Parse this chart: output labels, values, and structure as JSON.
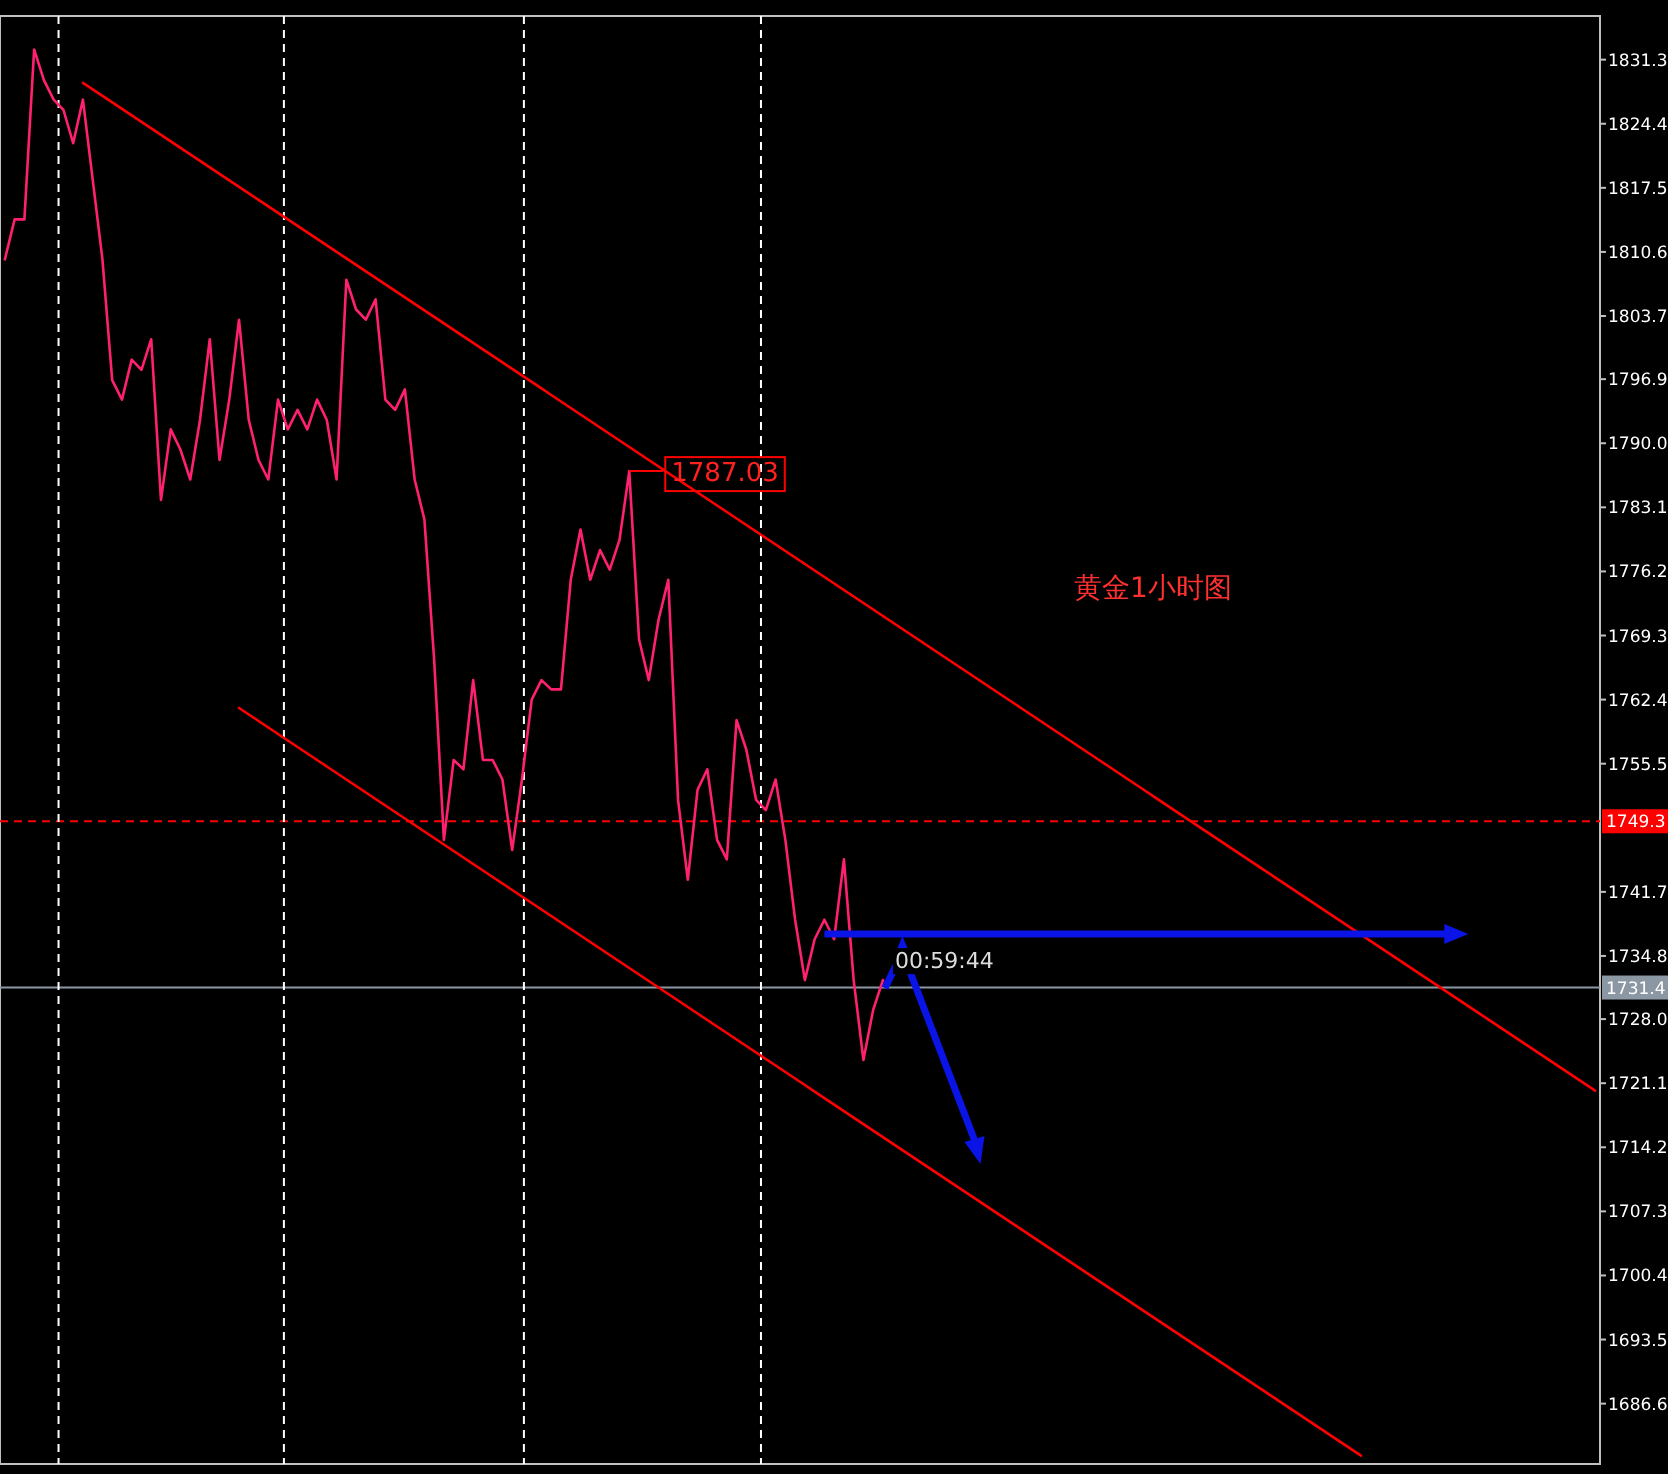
{
  "chart_data": {
    "type": "line",
    "categories": [
      null,
      null,
      null,
      null,
      null,
      null,
      null,
      null,
      null,
      null,
      null,
      null,
      null,
      null,
      null,
      null,
      null,
      null,
      null,
      null,
      null,
      null,
      null,
      null,
      null,
      null,
      null,
      null,
      null,
      null,
      null,
      null,
      null,
      null,
      null,
      null,
      null,
      null,
      null,
      null,
      null,
      null,
      null,
      null,
      null,
      null,
      null,
      null,
      null,
      null,
      null,
      null,
      null,
      null,
      null,
      null,
      null,
      null,
      null,
      null,
      null,
      null,
      null,
      null,
      null,
      null,
      null,
      null,
      null,
      null,
      null,
      null,
      null,
      null,
      null,
      null,
      null,
      null,
      null,
      null,
      null,
      null,
      null,
      null,
      null,
      null,
      null,
      null,
      null,
      null,
      null,
      null,
      null,
      null,
      null,
      null,
      null,
      null,
      null,
      null,
      null,
      null,
      null,
      null,
      null,
      null,
      null,
      null,
      null,
      null,
      null,
      null,
      null,
      null,
      null,
      null,
      null,
      null,
      null,
      null,
      null,
      null,
      null,
      null,
      null,
      null,
      null,
      null,
      null,
      null,
      null,
      null,
      null,
      null,
      null,
      null,
      null,
      null,
      null,
      null,
      null,
      null,
      null,
      null,
      null,
      null,
      null,
      null,
      null,
      null,
      null,
      null,
      null,
      null,
      null,
      null,
      null,
      null,
      null,
      null,
      null,
      null,
      null,
      null
    ],
    "ylim": [
      1680.1,
      1836.0
    ],
    "yticks": [
      1831.3,
      1824.4,
      1817.5,
      1810.6,
      1803.7,
      1796.9,
      {
        "value": 1790,
        "label": "1790.0"
      },
      1783.1,
      1776.2,
      1769.3,
      1762.4,
      1755.5,
      1741.7,
      1734.8,
      {
        "value": 1728,
        "label": "1728.0"
      },
      1721.1,
      1714.2,
      1707.3,
      1700.4,
      1693.5,
      1686.6
    ],
    "tick_labels": "y",
    "series": [
      {
        "color": "#ff2070",
        "values": [
          1809.8,
          1814.1,
          1814.1,
          1832.4,
          1829.1,
          1827.0,
          1825.9,
          1822.3,
          1827.0,
          1818.4,
          1809.8,
          1796.8,
          1794.7,
          1799.0,
          1797.9,
          1801.2,
          1783.9,
          1791.5,
          1789.3,
          1786.1,
          1792.5,
          1801.2,
          1788.2,
          1794.7,
          1803.3,
          1792.5,
          1788.2,
          1786.1,
          1794.7,
          1791.5,
          1793.6,
          1791.5,
          1794.7,
          1792.5,
          1786.1,
          1807.6,
          1804.4,
          1803.3,
          1805.5,
          1794.7,
          1793.6,
          1795.8,
          1786.1,
          1781.8,
          1766.7,
          1747.3,
          1755.9,
          1754.9,
          1764.5,
          1755.9,
          1755.9,
          1753.8,
          1746.2,
          1753.8,
          1762.4,
          1764.5,
          1763.5,
          1763.5,
          1775.3,
          1780.7,
          1775.3,
          1778.5,
          1776.4,
          1779.6,
          1787.0,
          1768.9,
          1764.5,
          1771.0,
          1775.3,
          1751.6,
          1743.0,
          1752.7,
          1754.9,
          1747.3,
          1745.2,
          1760.2,
          1757.0,
          1751.6,
          1750.5,
          1753.8,
          1747.3,
          1738.7,
          1732.2,
          1736.6,
          1738.7,
          1736.6,
          1745.2,
          1732.2,
          1723.6,
          1729.0,
          1732.2,
          null,
          null,
          null,
          null,
          null,
          null,
          null,
          null,
          null,
          null,
          null,
          null,
          null,
          null,
          null,
          null,
          null,
          null,
          null,
          null,
          null,
          null,
          null,
          null,
          null,
          null,
          null,
          null,
          null,
          null,
          null,
          null,
          null,
          null,
          null,
          null,
          null,
          null,
          null,
          null,
          null,
          null,
          null,
          null,
          null,
          null,
          null,
          null,
          null,
          null,
          null,
          null,
          null,
          null,
          null,
          null,
          null,
          null,
          null,
          null,
          null,
          null,
          null,
          null,
          null,
          null,
          null,
          null,
          null,
          null,
          null,
          null,
          null
        ]
      },
      {
        "color": "#ff0000",
        "values": [
          null,
          null,
          null,
          null,
          null,
          null,
          null,
          null,
          1828.8,
          1828.1,
          1827.4,
          1826.7,
          1826.0,
          1825.3,
          1824.6,
          1823.9,
          1823.2,
          1822.5,
          1821.8,
          1821.1,
          1820.4,
          1819.7,
          1819.0,
          1818.3,
          1817.6,
          1816.9,
          1816.2,
          1815.5,
          1814.8,
          1814.1,
          1813.4,
          1812.7,
          1812.0,
          1811.3,
          1810.6,
          1809.9,
          1809.2,
          1808.5,
          1807.8,
          1807.1,
          1806.4,
          1805.7,
          1805.0,
          1804.3,
          1803.6,
          1802.9,
          1802.2,
          1801.5,
          1800.8,
          1800.1,
          1799.4,
          1798.7,
          1798.0,
          1797.3,
          1796.6,
          1795.9,
          1795.2,
          1794.5,
          1793.8,
          1793.1,
          1792.4,
          1791.7,
          1791.0,
          1790.3,
          1789.6,
          1788.9,
          1788.2,
          1787.5,
          1786.8,
          1786.1,
          1785.4,
          1784.7,
          1784.0,
          1783.3,
          1782.6,
          1781.9,
          1781.2,
          1780.5,
          1779.8,
          1779.1,
          1778.4,
          1777.7,
          1777.0,
          1776.3,
          1775.6,
          1774.9,
          1774.2,
          1773.5,
          1772.8,
          1772.1,
          1771.4,
          1770.7,
          1770.0,
          1769.3,
          1768.6,
          1767.9,
          1767.2,
          1766.5,
          1765.8,
          1765.1,
          1764.4,
          1763.7,
          1763.0,
          1762.3,
          1761.6,
          1760.9,
          1760.2,
          1759.5,
          1758.8,
          1758.1,
          1757.4,
          1756.7,
          1756.0,
          1755.3,
          1754.6,
          1753.9,
          1753.2,
          1752.5,
          1751.8,
          1751.1,
          1750.4,
          1749.7,
          1749.0,
          1748.3,
          1747.6,
          1746.9,
          1746.2,
          1745.5,
          1744.8,
          1744.1,
          1743.4,
          1742.7,
          1742.0,
          1741.3,
          1740.6,
          1739.9,
          1739.2,
          1738.5,
          1737.8,
          1737.1,
          1736.4,
          1735.7,
          1735.0,
          1734.3,
          1733.6,
          1732.9,
          1732.2,
          1731.5,
          1730.8,
          1730.1,
          1729.4,
          1728.7,
          1728.0,
          1727.3,
          1726.6,
          1725.9,
          1725.2,
          1724.5,
          1723.8,
          1723.1,
          1722.4,
          1721.7,
          1721.0,
          1720.3
        ]
      },
      {
        "color": "#ff0000",
        "values": [
          null,
          null,
          null,
          null,
          null,
          null,
          null,
          null,
          null,
          null,
          null,
          null,
          null,
          null,
          null,
          null,
          null,
          null,
          null,
          null,
          null,
          null,
          null,
          null,
          1761.5,
          1760.8,
          1760.1,
          1759.4,
          1758.7,
          1758.0,
          1757.3,
          1756.6,
          1755.9,
          1755.2,
          1754.5,
          1753.8,
          1753.1,
          1752.4,
          1751.7,
          1751.0,
          1750.3,
          1749.6,
          1748.9,
          1748.2,
          1747.5,
          1746.8,
          1746.1,
          1745.4,
          1744.7,
          1744.0,
          1743.3,
          1742.6,
          1741.9,
          1741.2,
          1740.5,
          1739.8,
          1739.1,
          1738.4,
          1737.7,
          1737.0,
          1736.3,
          1735.6,
          1734.9,
          1734.2,
          1733.5,
          1732.8,
          1732.1,
          1731.4,
          1730.7,
          1730.0,
          1729.3,
          1728.6,
          1727.9,
          1727.2,
          1726.5,
          1725.8,
          1725.1,
          1724.4,
          1723.7,
          1723.0,
          1722.3,
          1721.6,
          1720.9,
          1720.2,
          1719.5,
          1718.8,
          1718.1,
          1717.4,
          1716.7,
          1716.0,
          1715.3,
          1714.6,
          1713.9,
          1713.2,
          1712.5,
          1711.8,
          1711.1,
          1710.4,
          1709.7,
          1709.0,
          1708.3,
          1707.6,
          1706.9,
          1706.2,
          1705.5,
          1704.8,
          1704.1,
          1703.4,
          1702.7,
          1702.0,
          1701.3,
          1700.6,
          1699.9,
          1699.2,
          1698.5,
          1697.8,
          1697.1,
          1696.4,
          1695.7,
          1695.0,
          1694.3,
          1693.6,
          1692.9,
          1692.2,
          1691.5,
          1690.8,
          1690.1,
          1689.4,
          1688.7,
          1688.0,
          1687.3,
          1686.6,
          1685.9,
          1685.2,
          1684.5,
          1683.8,
          1683.1,
          1682.4,
          1681.7,
          1681.0,
          null,
          null,
          null,
          null,
          null,
          null,
          null,
          null,
          null,
          null,
          null,
          null,
          null,
          null,
          null,
          null,
          null,
          null,
          null,
          null,
          null,
          null,
          null,
          null
        ]
      }
    ],
    "ref_lines": [
      {
        "axis": "y",
        "value": 1749.3,
        "label": "1749.3",
        "color": "#ff0000",
        "line_style": "dashed"
      },
      {
        "axis": "y",
        "value": 1731.4,
        "label": "1731.4",
        "color": "#8c97a4",
        "line_style": "solid"
      }
    ],
    "annotations": [
      "1787.03",
      "黄金1小时图",
      "00:59:44"
    ]
  }
}
